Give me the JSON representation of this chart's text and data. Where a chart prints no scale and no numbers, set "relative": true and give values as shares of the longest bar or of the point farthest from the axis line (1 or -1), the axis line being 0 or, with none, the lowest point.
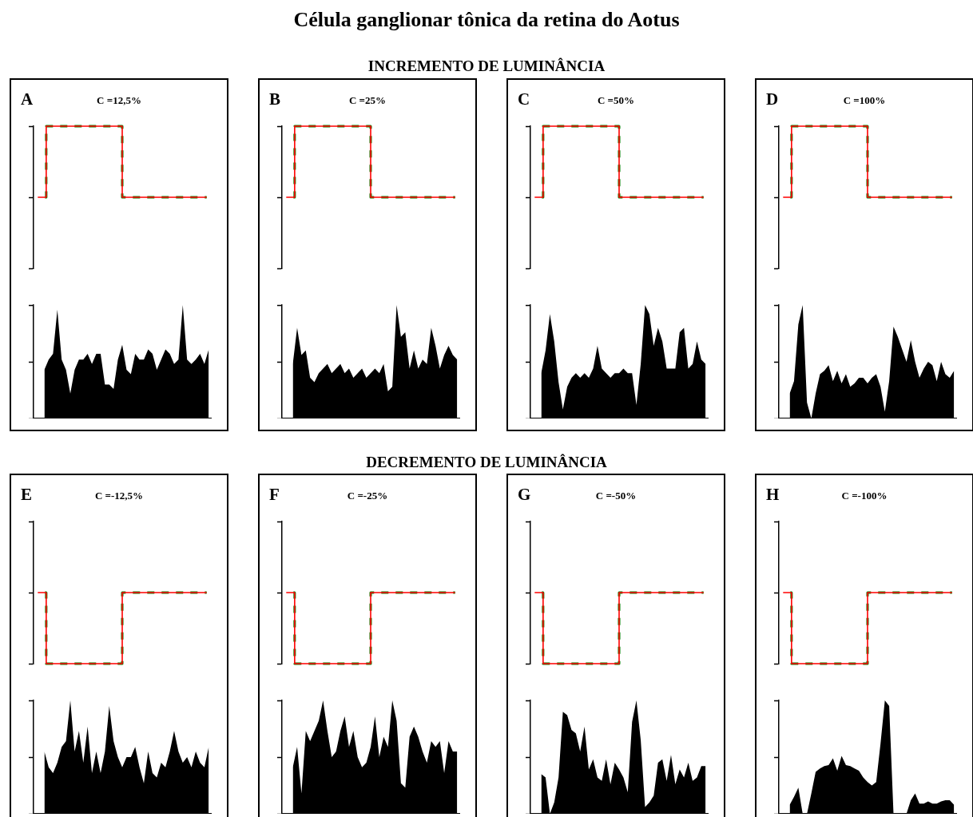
{
  "chart_data": [
    {
      "type": "other",
      "title": "Célula ganglionar tônica da retina do Aotus",
      "annotations": [
        "INCREMENTO DE LUMINÂNCIA",
        "DECREMENTO DE LUMINÂNCIA"
      ]
    },
    {
      "type": "step",
      "relative": true,
      "categories": [
        null,
        null,
        null,
        null,
        null,
        null,
        null,
        null,
        null,
        null,
        null,
        null,
        null,
        null,
        null,
        null,
        null,
        null,
        null,
        null,
        null
      ],
      "series": [
        {
          "color": "#ff0000",
          "line_style": "solid",
          "values": [
            0,
            1,
            1,
            1,
            1,
            1,
            1,
            1,
            1,
            1,
            0,
            0,
            0,
            0,
            0,
            0,
            0,
            0,
            0,
            0,
            0
          ]
        },
        {
          "color": "#008000",
          "line_style": "dashed",
          "values": [
            0,
            1,
            1,
            1,
            1,
            1,
            1,
            1,
            1,
            1,
            0,
            0,
            0,
            0,
            0,
            0,
            0,
            0,
            0,
            0,
            0
          ]
        }
      ],
      "tick_labels": false,
      "grid": false,
      "marker": "none",
      "annotations": [
        "A",
        "C =12,5%"
      ]
    },
    {
      "type": "area",
      "relative": true,
      "categories": [
        null,
        null,
        null,
        null,
        null,
        null,
        null,
        null,
        null,
        null,
        null,
        null,
        null,
        null,
        null,
        null,
        null,
        null,
        null,
        null,
        null,
        null,
        null,
        null,
        null,
        null,
        null,
        null,
        null,
        null,
        null,
        null,
        null,
        null,
        null,
        null,
        null,
        null,
        null,
        null,
        null
      ],
      "color": "#000000",
      "values": [
        null,
        null,
        0.43,
        0.52,
        0.57,
        0.96,
        0.52,
        0.43,
        0.22,
        0.43,
        0.52,
        0.52,
        0.57,
        0.48,
        0.57,
        0.57,
        0.3,
        0.3,
        0.26,
        0.52,
        0.65,
        0.43,
        0.39,
        0.57,
        0.52,
        0.52,
        0.61,
        0.57,
        0.43,
        0.52,
        0.61,
        0.57,
        0.48,
        0.52,
        1,
        0.52,
        0.48,
        0.52,
        0.57,
        0.48,
        0.61
      ],
      "tick_labels": false,
      "grid": false,
      "marker": "none"
    },
    {
      "type": "step",
      "relative": true,
      "categories": [
        null,
        null,
        null,
        null,
        null,
        null,
        null,
        null,
        null,
        null,
        null,
        null,
        null,
        null,
        null,
        null,
        null,
        null,
        null,
        null,
        null
      ],
      "series": [
        {
          "color": "#ff0000",
          "line_style": "solid",
          "values": [
            0,
            1,
            1,
            1,
            1,
            1,
            1,
            1,
            1,
            1,
            0,
            0,
            0,
            0,
            0,
            0,
            0,
            0,
            0,
            0,
            0
          ]
        },
        {
          "color": "#008000",
          "line_style": "dashed",
          "values": [
            0,
            1,
            1,
            1,
            1,
            1,
            1,
            1,
            1,
            1,
            0,
            0,
            0,
            0,
            0,
            0,
            0,
            0,
            0,
            0,
            0
          ]
        }
      ],
      "tick_labels": false,
      "grid": false,
      "marker": "none",
      "annotations": [
        "B",
        "C =25%"
      ]
    },
    {
      "type": "area",
      "relative": true,
      "categories": [
        null,
        null,
        null,
        null,
        null,
        null,
        null,
        null,
        null,
        null,
        null,
        null,
        null,
        null,
        null,
        null,
        null,
        null,
        null,
        null,
        null,
        null,
        null,
        null,
        null,
        null,
        null,
        null,
        null,
        null,
        null,
        null,
        null,
        null,
        null,
        null,
        null,
        null,
        null,
        null,
        null
      ],
      "color": "#000000",
      "values": [
        null,
        null,
        0.48,
        0.8,
        0.56,
        0.6,
        0.36,
        0.32,
        0.4,
        0.44,
        0.48,
        0.4,
        0.44,
        0.48,
        0.4,
        0.44,
        0.36,
        0.4,
        0.44,
        0.36,
        0.4,
        0.44,
        0.4,
        0.48,
        0.24,
        0.28,
        1,
        0.72,
        0.76,
        0.44,
        0.6,
        0.44,
        0.52,
        0.48,
        0.8,
        0.64,
        0.44,
        0.56,
        0.64,
        0.56,
        0.52
      ],
      "tick_labels": false,
      "grid": false,
      "marker": "none"
    },
    {
      "type": "step",
      "relative": true,
      "categories": [
        null,
        null,
        null,
        null,
        null,
        null,
        null,
        null,
        null,
        null,
        null,
        null,
        null,
        null,
        null,
        null,
        null,
        null,
        null,
        null,
        null
      ],
      "series": [
        {
          "color": "#ff0000",
          "line_style": "solid",
          "values": [
            0,
            1,
            1,
            1,
            1,
            1,
            1,
            1,
            1,
            1,
            0,
            0,
            0,
            0,
            0,
            0,
            0,
            0,
            0,
            0,
            0
          ]
        },
        {
          "color": "#008000",
          "line_style": "dashed",
          "values": [
            0,
            1,
            1,
            1,
            1,
            1,
            1,
            1,
            1,
            1,
            0,
            0,
            0,
            0,
            0,
            0,
            0,
            0,
            0,
            0,
            0
          ]
        }
      ],
      "tick_labels": false,
      "grid": false,
      "marker": "none",
      "annotations": [
        "C",
        "C =50%"
      ]
    },
    {
      "type": "area",
      "relative": true,
      "categories": [
        null,
        null,
        null,
        null,
        null,
        null,
        null,
        null,
        null,
        null,
        null,
        null,
        null,
        null,
        null,
        null,
        null,
        null,
        null,
        null,
        null,
        null,
        null,
        null,
        null,
        null,
        null,
        null,
        null,
        null,
        null,
        null,
        null,
        null,
        null,
        null,
        null,
        null,
        null,
        null,
        null
      ],
      "color": "#000000",
      "values": [
        null,
        null,
        0.4,
        0.6,
        0.92,
        0.68,
        0.32,
        0.08,
        0.28,
        0.36,
        0.4,
        0.36,
        0.4,
        0.36,
        0.44,
        0.64,
        0.44,
        0.4,
        0.36,
        0.4,
        0.4,
        0.44,
        0.4,
        0.4,
        0.12,
        0.48,
        1,
        0.92,
        0.64,
        0.8,
        0.68,
        0.44,
        0.44,
        0.44,
        0.76,
        0.8,
        0.44,
        0.48,
        0.68,
        0.52,
        0.48
      ],
      "tick_labels": false,
      "grid": false,
      "marker": "none"
    },
    {
      "type": "step",
      "relative": true,
      "categories": [
        null,
        null,
        null,
        null,
        null,
        null,
        null,
        null,
        null,
        null,
        null,
        null,
        null,
        null,
        null,
        null,
        null,
        null,
        null,
        null,
        null
      ],
      "series": [
        {
          "color": "#ff0000",
          "line_style": "solid",
          "values": [
            0,
            1,
            1,
            1,
            1,
            1,
            1,
            1,
            1,
            1,
            0,
            0,
            0,
            0,
            0,
            0,
            0,
            0,
            0,
            0,
            0
          ]
        },
        {
          "color": "#008000",
          "line_style": "dashed",
          "values": [
            0,
            1,
            1,
            1,
            1,
            1,
            1,
            1,
            1,
            1,
            0,
            0,
            0,
            0,
            0,
            0,
            0,
            0,
            0,
            0,
            0
          ]
        }
      ],
      "tick_labels": false,
      "grid": false,
      "marker": "none",
      "annotations": [
        "D",
        "C =100%"
      ]
    },
    {
      "type": "area",
      "relative": true,
      "categories": [
        null,
        null,
        null,
        null,
        null,
        null,
        null,
        null,
        null,
        null,
        null,
        null,
        null,
        null,
        null,
        null,
        null,
        null,
        null,
        null,
        null,
        null,
        null,
        null,
        null,
        null,
        null,
        null,
        null,
        null,
        null,
        null,
        null,
        null,
        null,
        null,
        null,
        null,
        null,
        null,
        null
      ],
      "color": "#000000",
      "values": [
        null,
        null,
        0.22,
        0.33,
        0.83,
        1,
        0.14,
        0,
        0.22,
        0.39,
        0.42,
        0.47,
        0.33,
        0.42,
        0.31,
        0.39,
        0.28,
        0.31,
        0.36,
        0.36,
        0.31,
        0.36,
        0.39,
        0.28,
        0.06,
        0.33,
        0.81,
        0.72,
        0.61,
        0.5,
        0.69,
        0.5,
        0.36,
        0.44,
        0.5,
        0.47,
        0.33,
        0.5,
        0.39,
        0.36,
        0.42
      ],
      "tick_labels": false,
      "grid": false,
      "marker": "none"
    },
    {
      "type": "step",
      "relative": true,
      "categories": [
        null,
        null,
        null,
        null,
        null,
        null,
        null,
        null,
        null,
        null,
        null,
        null,
        null,
        null,
        null,
        null,
        null,
        null,
        null,
        null,
        null
      ],
      "series": [
        {
          "color": "#ff0000",
          "line_style": "solid",
          "values": [
            1,
            0,
            0,
            0,
            0,
            0,
            0,
            0,
            0,
            0,
            1,
            1,
            1,
            1,
            1,
            1,
            1,
            1,
            1,
            1,
            1
          ]
        },
        {
          "color": "#008000",
          "line_style": "dashed",
          "values": [
            1,
            0,
            0,
            0,
            0,
            0,
            0,
            0,
            0,
            0,
            1,
            1,
            1,
            1,
            1,
            1,
            1,
            1,
            1,
            1,
            1
          ]
        }
      ],
      "tick_labels": false,
      "grid": false,
      "marker": "none",
      "annotations": [
        "E",
        "C =-12,5%"
      ]
    },
    {
      "type": "area",
      "relative": true,
      "categories": [
        null,
        null,
        null,
        null,
        null,
        null,
        null,
        null,
        null,
        null,
        null,
        null,
        null,
        null,
        null,
        null,
        null,
        null,
        null,
        null,
        null,
        null,
        null,
        null,
        null,
        null,
        null,
        null,
        null,
        null,
        null,
        null,
        null,
        null,
        null,
        null,
        null,
        null,
        null,
        null,
        null
      ],
      "color": "#000000",
      "values": [
        null,
        null,
        0.55,
        0.41,
        0.36,
        0.45,
        0.59,
        0.64,
        1,
        0.55,
        0.73,
        0.45,
        0.77,
        0.36,
        0.55,
        0.36,
        0.55,
        0.95,
        0.64,
        0.5,
        0.41,
        0.5,
        0.5,
        0.59,
        0.41,
        0.27,
        0.55,
        0.36,
        0.32,
        0.45,
        0.41,
        0.55,
        0.73,
        0.55,
        0.45,
        0.5,
        0.41,
        0.55,
        0.45,
        0.41,
        0.59
      ],
      "tick_labels": false,
      "grid": false,
      "marker": "none"
    },
    {
      "type": "step",
      "relative": true,
      "categories": [
        null,
        null,
        null,
        null,
        null,
        null,
        null,
        null,
        null,
        null,
        null,
        null,
        null,
        null,
        null,
        null,
        null,
        null,
        null,
        null,
        null
      ],
      "series": [
        {
          "color": "#ff0000",
          "line_style": "solid",
          "values": [
            1,
            0,
            0,
            0,
            0,
            0,
            0,
            0,
            0,
            0,
            1,
            1,
            1,
            1,
            1,
            1,
            1,
            1,
            1,
            1,
            1
          ]
        },
        {
          "color": "#008000",
          "line_style": "dashed",
          "values": [
            1,
            0,
            0,
            0,
            0,
            0,
            0,
            0,
            0,
            0,
            1,
            1,
            1,
            1,
            1,
            1,
            1,
            1,
            1,
            1,
            1
          ]
        }
      ],
      "tick_labels": false,
      "grid": false,
      "marker": "none",
      "annotations": [
        "F",
        "C =-25%"
      ]
    },
    {
      "type": "area",
      "relative": true,
      "categories": [
        null,
        null,
        null,
        null,
        null,
        null,
        null,
        null,
        null,
        null,
        null,
        null,
        null,
        null,
        null,
        null,
        null,
        null,
        null,
        null,
        null,
        null,
        null,
        null,
        null,
        null,
        null,
        null,
        null,
        null,
        null,
        null,
        null,
        null,
        null,
        null,
        null,
        null,
        null,
        null,
        null
      ],
      "color": "#000000",
      "values": [
        null,
        null,
        0.41,
        0.59,
        0.18,
        0.73,
        0.64,
        0.73,
        0.82,
        1,
        0.73,
        0.5,
        0.55,
        0.73,
        0.86,
        0.59,
        0.73,
        0.5,
        0.41,
        0.45,
        0.59,
        0.86,
        0.5,
        0.68,
        0.59,
        1,
        0.82,
        0.27,
        0.23,
        0.68,
        0.77,
        0.68,
        0.55,
        0.45,
        0.64,
        0.59,
        0.64,
        0.36,
        0.64,
        0.55,
        0.55
      ],
      "tick_labels": false,
      "grid": false,
      "marker": "none"
    },
    {
      "type": "step",
      "relative": true,
      "categories": [
        null,
        null,
        null,
        null,
        null,
        null,
        null,
        null,
        null,
        null,
        null,
        null,
        null,
        null,
        null,
        null,
        null,
        null,
        null,
        null,
        null
      ],
      "series": [
        {
          "color": "#ff0000",
          "line_style": "solid",
          "values": [
            1,
            0,
            0,
            0,
            0,
            0,
            0,
            0,
            0,
            0,
            1,
            1,
            1,
            1,
            1,
            1,
            1,
            1,
            1,
            1,
            1
          ]
        },
        {
          "color": "#008000",
          "line_style": "dashed",
          "values": [
            1,
            0,
            0,
            0,
            0,
            0,
            0,
            0,
            0,
            0,
            1,
            1,
            1,
            1,
            1,
            1,
            1,
            1,
            1,
            1,
            1
          ]
        }
      ],
      "tick_labels": false,
      "grid": false,
      "marker": "none",
      "annotations": [
        "G",
        "C =-50%"
      ]
    },
    {
      "type": "area",
      "relative": true,
      "categories": [
        null,
        null,
        null,
        null,
        null,
        null,
        null,
        null,
        null,
        null,
        null,
        null,
        null,
        null,
        null,
        null,
        null,
        null,
        null,
        null,
        null,
        null,
        null,
        null,
        null,
        null,
        null,
        null,
        null,
        null,
        null,
        null,
        null,
        null,
        null,
        null,
        null,
        null,
        null,
        null,
        null
      ],
      "color": "#000000",
      "values": [
        null,
        null,
        0.35,
        0.32,
        0,
        0.1,
        0.32,
        0.9,
        0.87,
        0.74,
        0.71,
        0.55,
        0.77,
        0.39,
        0.48,
        0.32,
        0.29,
        0.48,
        0.26,
        0.45,
        0.39,
        0.32,
        0.19,
        0.81,
        1,
        0.65,
        0.06,
        0.1,
        0.16,
        0.45,
        0.48,
        0.29,
        0.52,
        0.26,
        0.39,
        0.32,
        0.45,
        0.29,
        0.32,
        0.42,
        0.42
      ],
      "tick_labels": false,
      "grid": false,
      "marker": "none"
    },
    {
      "type": "step",
      "relative": true,
      "categories": [
        null,
        null,
        null,
        null,
        null,
        null,
        null,
        null,
        null,
        null,
        null,
        null,
        null,
        null,
        null,
        null,
        null,
        null,
        null,
        null,
        null
      ],
      "series": [
        {
          "color": "#ff0000",
          "line_style": "solid",
          "values": [
            1,
            0,
            0,
            0,
            0,
            0,
            0,
            0,
            0,
            0,
            1,
            1,
            1,
            1,
            1,
            1,
            1,
            1,
            1,
            1,
            1
          ]
        },
        {
          "color": "#008000",
          "line_style": "dashed",
          "values": [
            1,
            0,
            0,
            0,
            0,
            0,
            0,
            0,
            0,
            0,
            1,
            1,
            1,
            1,
            1,
            1,
            1,
            1,
            1,
            1,
            1
          ]
        }
      ],
      "tick_labels": false,
      "grid": false,
      "marker": "none",
      "annotations": [
        "H",
        "C =-100%"
      ]
    },
    {
      "type": "area",
      "relative": true,
      "categories": [
        null,
        null,
        null,
        null,
        null,
        null,
        null,
        null,
        null,
        null,
        null,
        null,
        null,
        null,
        null,
        null,
        null,
        null,
        null,
        null,
        null,
        null,
        null,
        null,
        null,
        null,
        null,
        null,
        null,
        null,
        null,
        null,
        null,
        null,
        null,
        null,
        null,
        null,
        null,
        null,
        null
      ],
      "color": "#000000",
      "values": [
        null,
        null,
        0.08,
        0.15,
        0.23,
        0,
        0,
        0.18,
        0.37,
        0.4,
        0.42,
        0.43,
        0.49,
        0.38,
        0.51,
        0.43,
        0.42,
        0.4,
        0.38,
        0.32,
        0.28,
        0.25,
        0.28,
        0.62,
        1,
        0.95,
        0,
        0,
        0,
        0,
        0.12,
        0.18,
        0.09,
        0.09,
        0.11,
        0.09,
        0.09,
        0.11,
        0.12,
        0.12,
        0.08
      ],
      "tick_labels": false,
      "grid": false,
      "marker": "none"
    }
  ]
}
